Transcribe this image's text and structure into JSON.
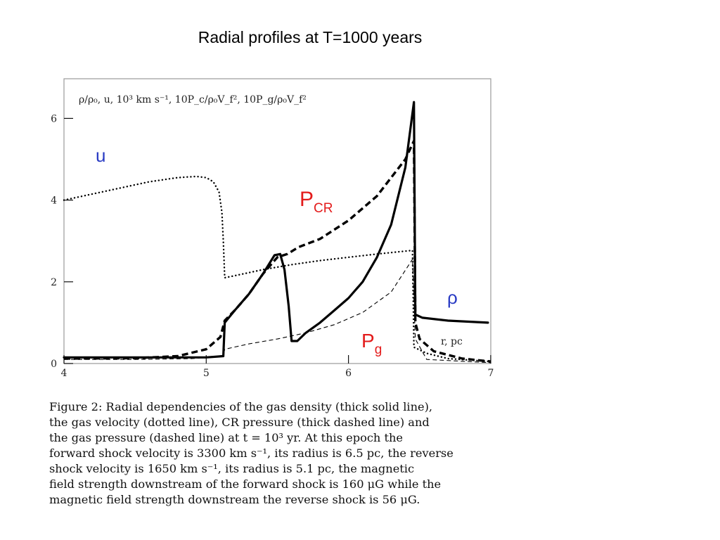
{
  "slide": {
    "title": "Radial profiles at T=1000 years"
  },
  "chart_data": {
    "type": "line",
    "title": "",
    "ylabel": "ρ/ρ₀, u, 10³ km s⁻¹, 10P_c/ρ₀V_f², 10P_g/ρ₀V_f²",
    "xlabel": "r, pc",
    "xlim": [
      4,
      7
    ],
    "ylim": [
      0,
      7
    ],
    "x_ticks": [
      "4",
      "5",
      "6",
      "7"
    ],
    "y_ticks": [
      "0",
      "2",
      "4",
      "6"
    ],
    "grid": false,
    "annotations": {
      "u": "u",
      "pcr_main": "P",
      "pcr_sub": "CR",
      "rho": "ρ",
      "pg_main": "P",
      "pg_sub": "g"
    },
    "series": [
      {
        "name": "ρ/ρ₀",
        "style": "thick-solid",
        "points": [
          [
            4.0,
            0.15
          ],
          [
            4.5,
            0.15
          ],
          [
            5.0,
            0.15
          ],
          [
            5.12,
            0.18
          ],
          [
            5.13,
            1.0
          ],
          [
            5.2,
            1.3
          ],
          [
            5.3,
            1.7
          ],
          [
            5.4,
            2.2
          ],
          [
            5.48,
            2.65
          ],
          [
            5.52,
            2.68
          ],
          [
            5.55,
            2.3
          ],
          [
            5.58,
            1.4
          ],
          [
            5.6,
            0.55
          ],
          [
            5.64,
            0.55
          ],
          [
            5.7,
            0.75
          ],
          [
            5.8,
            1.0
          ],
          [
            5.9,
            1.3
          ],
          [
            6.0,
            1.6
          ],
          [
            6.1,
            2.0
          ],
          [
            6.2,
            2.6
          ],
          [
            6.3,
            3.4
          ],
          [
            6.4,
            4.8
          ],
          [
            6.46,
            6.4
          ],
          [
            6.47,
            1.2
          ],
          [
            6.52,
            1.12
          ],
          [
            6.7,
            1.05
          ],
          [
            6.98,
            1.0
          ]
        ]
      },
      {
        "name": "u",
        "style": "dotted",
        "points": [
          [
            4.0,
            4.0
          ],
          [
            4.2,
            4.15
          ],
          [
            4.4,
            4.3
          ],
          [
            4.6,
            4.45
          ],
          [
            4.8,
            4.55
          ],
          [
            4.93,
            4.58
          ],
          [
            5.0,
            4.55
          ],
          [
            5.05,
            4.45
          ],
          [
            5.09,
            4.2
          ],
          [
            5.11,
            3.7
          ],
          [
            5.12,
            3.0
          ],
          [
            5.13,
            2.1
          ],
          [
            5.2,
            2.15
          ],
          [
            5.4,
            2.3
          ],
          [
            5.6,
            2.42
          ],
          [
            5.8,
            2.52
          ],
          [
            6.0,
            2.6
          ],
          [
            6.2,
            2.68
          ],
          [
            6.45,
            2.77
          ],
          [
            6.46,
            0.4
          ],
          [
            6.55,
            0.25
          ],
          [
            6.7,
            0.12
          ],
          [
            7.0,
            0.05
          ]
        ]
      },
      {
        "name": "10P_c/ρ₀V_f²",
        "style": "thick-dashed",
        "points": [
          [
            4.0,
            0.12
          ],
          [
            4.5,
            0.13
          ],
          [
            4.8,
            0.18
          ],
          [
            5.0,
            0.35
          ],
          [
            5.1,
            0.65
          ],
          [
            5.13,
            1.05
          ],
          [
            5.2,
            1.3
          ],
          [
            5.3,
            1.7
          ],
          [
            5.4,
            2.2
          ],
          [
            5.5,
            2.6
          ],
          [
            5.57,
            2.68
          ],
          [
            5.65,
            2.85
          ],
          [
            5.8,
            3.05
          ],
          [
            6.0,
            3.5
          ],
          [
            6.2,
            4.1
          ],
          [
            6.4,
            5.0
          ],
          [
            6.46,
            5.45
          ],
          [
            6.47,
            1.0
          ],
          [
            6.5,
            0.6
          ],
          [
            6.6,
            0.3
          ],
          [
            6.8,
            0.12
          ],
          [
            7.0,
            0.05
          ]
        ]
      },
      {
        "name": "10P_g/ρ₀V_f²",
        "style": "dashed",
        "points": [
          [
            4.0,
            0.1
          ],
          [
            4.5,
            0.1
          ],
          [
            4.9,
            0.12
          ],
          [
            5.0,
            0.15
          ],
          [
            5.12,
            0.2
          ],
          [
            5.13,
            0.35
          ],
          [
            5.3,
            0.48
          ],
          [
            5.5,
            0.6
          ],
          [
            5.7,
            0.75
          ],
          [
            5.9,
            0.95
          ],
          [
            6.1,
            1.25
          ],
          [
            6.3,
            1.75
          ],
          [
            6.45,
            2.55
          ],
          [
            6.47,
            0.6
          ],
          [
            6.55,
            0.1
          ],
          [
            7.0,
            0.02
          ]
        ]
      }
    ]
  },
  "caption": {
    "lines": [
      "Figure 2: Radial dependencies of the gas density (thick solid line),",
      "the gas velocity (dotted line), CR pressure (thick dashed line) and",
      "the gas pressure (dashed line) at t = 10³ yr.  At this epoch the",
      "forward shock velocity is 3300 km s⁻¹, its radius is 6.5 pc, the reverse",
      "shock velocity is 1650 km s⁻¹, its radius is 5.1 pc, the magnetic",
      "field strength downstream of the forward shock is 160 μG while the",
      "magnetic field strength downstream the reverse shock is 56 μG."
    ]
  }
}
